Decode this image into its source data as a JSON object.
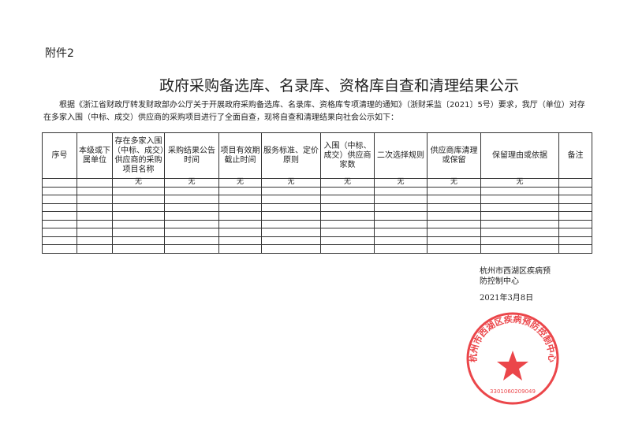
{
  "attachment_label": "附件2",
  "title": "政府采购备选库、名录库、资格库自查和清理结果公示",
  "intro": "根据《浙江省财政厅转发财政部办公厅关于开展政府采购备选库、名录库、资格库专项清理的通知》（浙财采监〔2021〕5号）要求，我厅（单位）对存在多家入围（中标、成交）供应商的采购项目进行了全面自查，现将自查和清理结果向社会公示如下：",
  "table": {
    "headers": [
      "序号",
      "本级或下属单位",
      "存在多家入围（中标、成交）供应商的采购项目名称",
      "采购结果公告时间",
      "项目有效期截止时间",
      "服务标准、定价原则",
      "入围（中标、成交）供应商家数",
      "二次选择规则",
      "供应商库清理或保留",
      "保留理由或依据",
      "备注"
    ],
    "rows": [
      [
        "",
        "",
        "无",
        "无",
        "无",
        "无",
        "无",
        "无",
        "无",
        "无",
        ""
      ],
      [
        "",
        "",
        "",
        "",
        "",
        "",
        "",
        "",
        "",
        "",
        ""
      ],
      [
        "",
        "",
        "",
        "",
        "",
        "",
        "",
        "",
        "",
        "",
        ""
      ],
      [
        "",
        "",
        "",
        "",
        "",
        "",
        "",
        "",
        "",
        "",
        ""
      ],
      [
        "",
        "",
        "",
        "",
        "",
        "",
        "",
        "",
        "",
        "",
        ""
      ],
      [
        "",
        "",
        "",
        "",
        "",
        "",
        "",
        "",
        "",
        "",
        ""
      ],
      [
        "",
        "",
        "",
        "",
        "",
        "",
        "",
        "",
        "",
        "",
        ""
      ],
      [
        "",
        "",
        "",
        "",
        "",
        "",
        "",
        "",
        "",
        "",
        ""
      ],
      [
        "",
        "",
        "",
        "",
        "",
        "",
        "",
        "",
        "",
        "",
        ""
      ]
    ]
  },
  "signature": {
    "org_line1": "杭州市西湖区疾病预",
    "org_line2": "防控制中心",
    "date": "2021年3月8日"
  },
  "stamp": {
    "text": "杭州市西湖区疾病预防控制中心",
    "number": "3301060209049",
    "color": "#e8262b"
  }
}
